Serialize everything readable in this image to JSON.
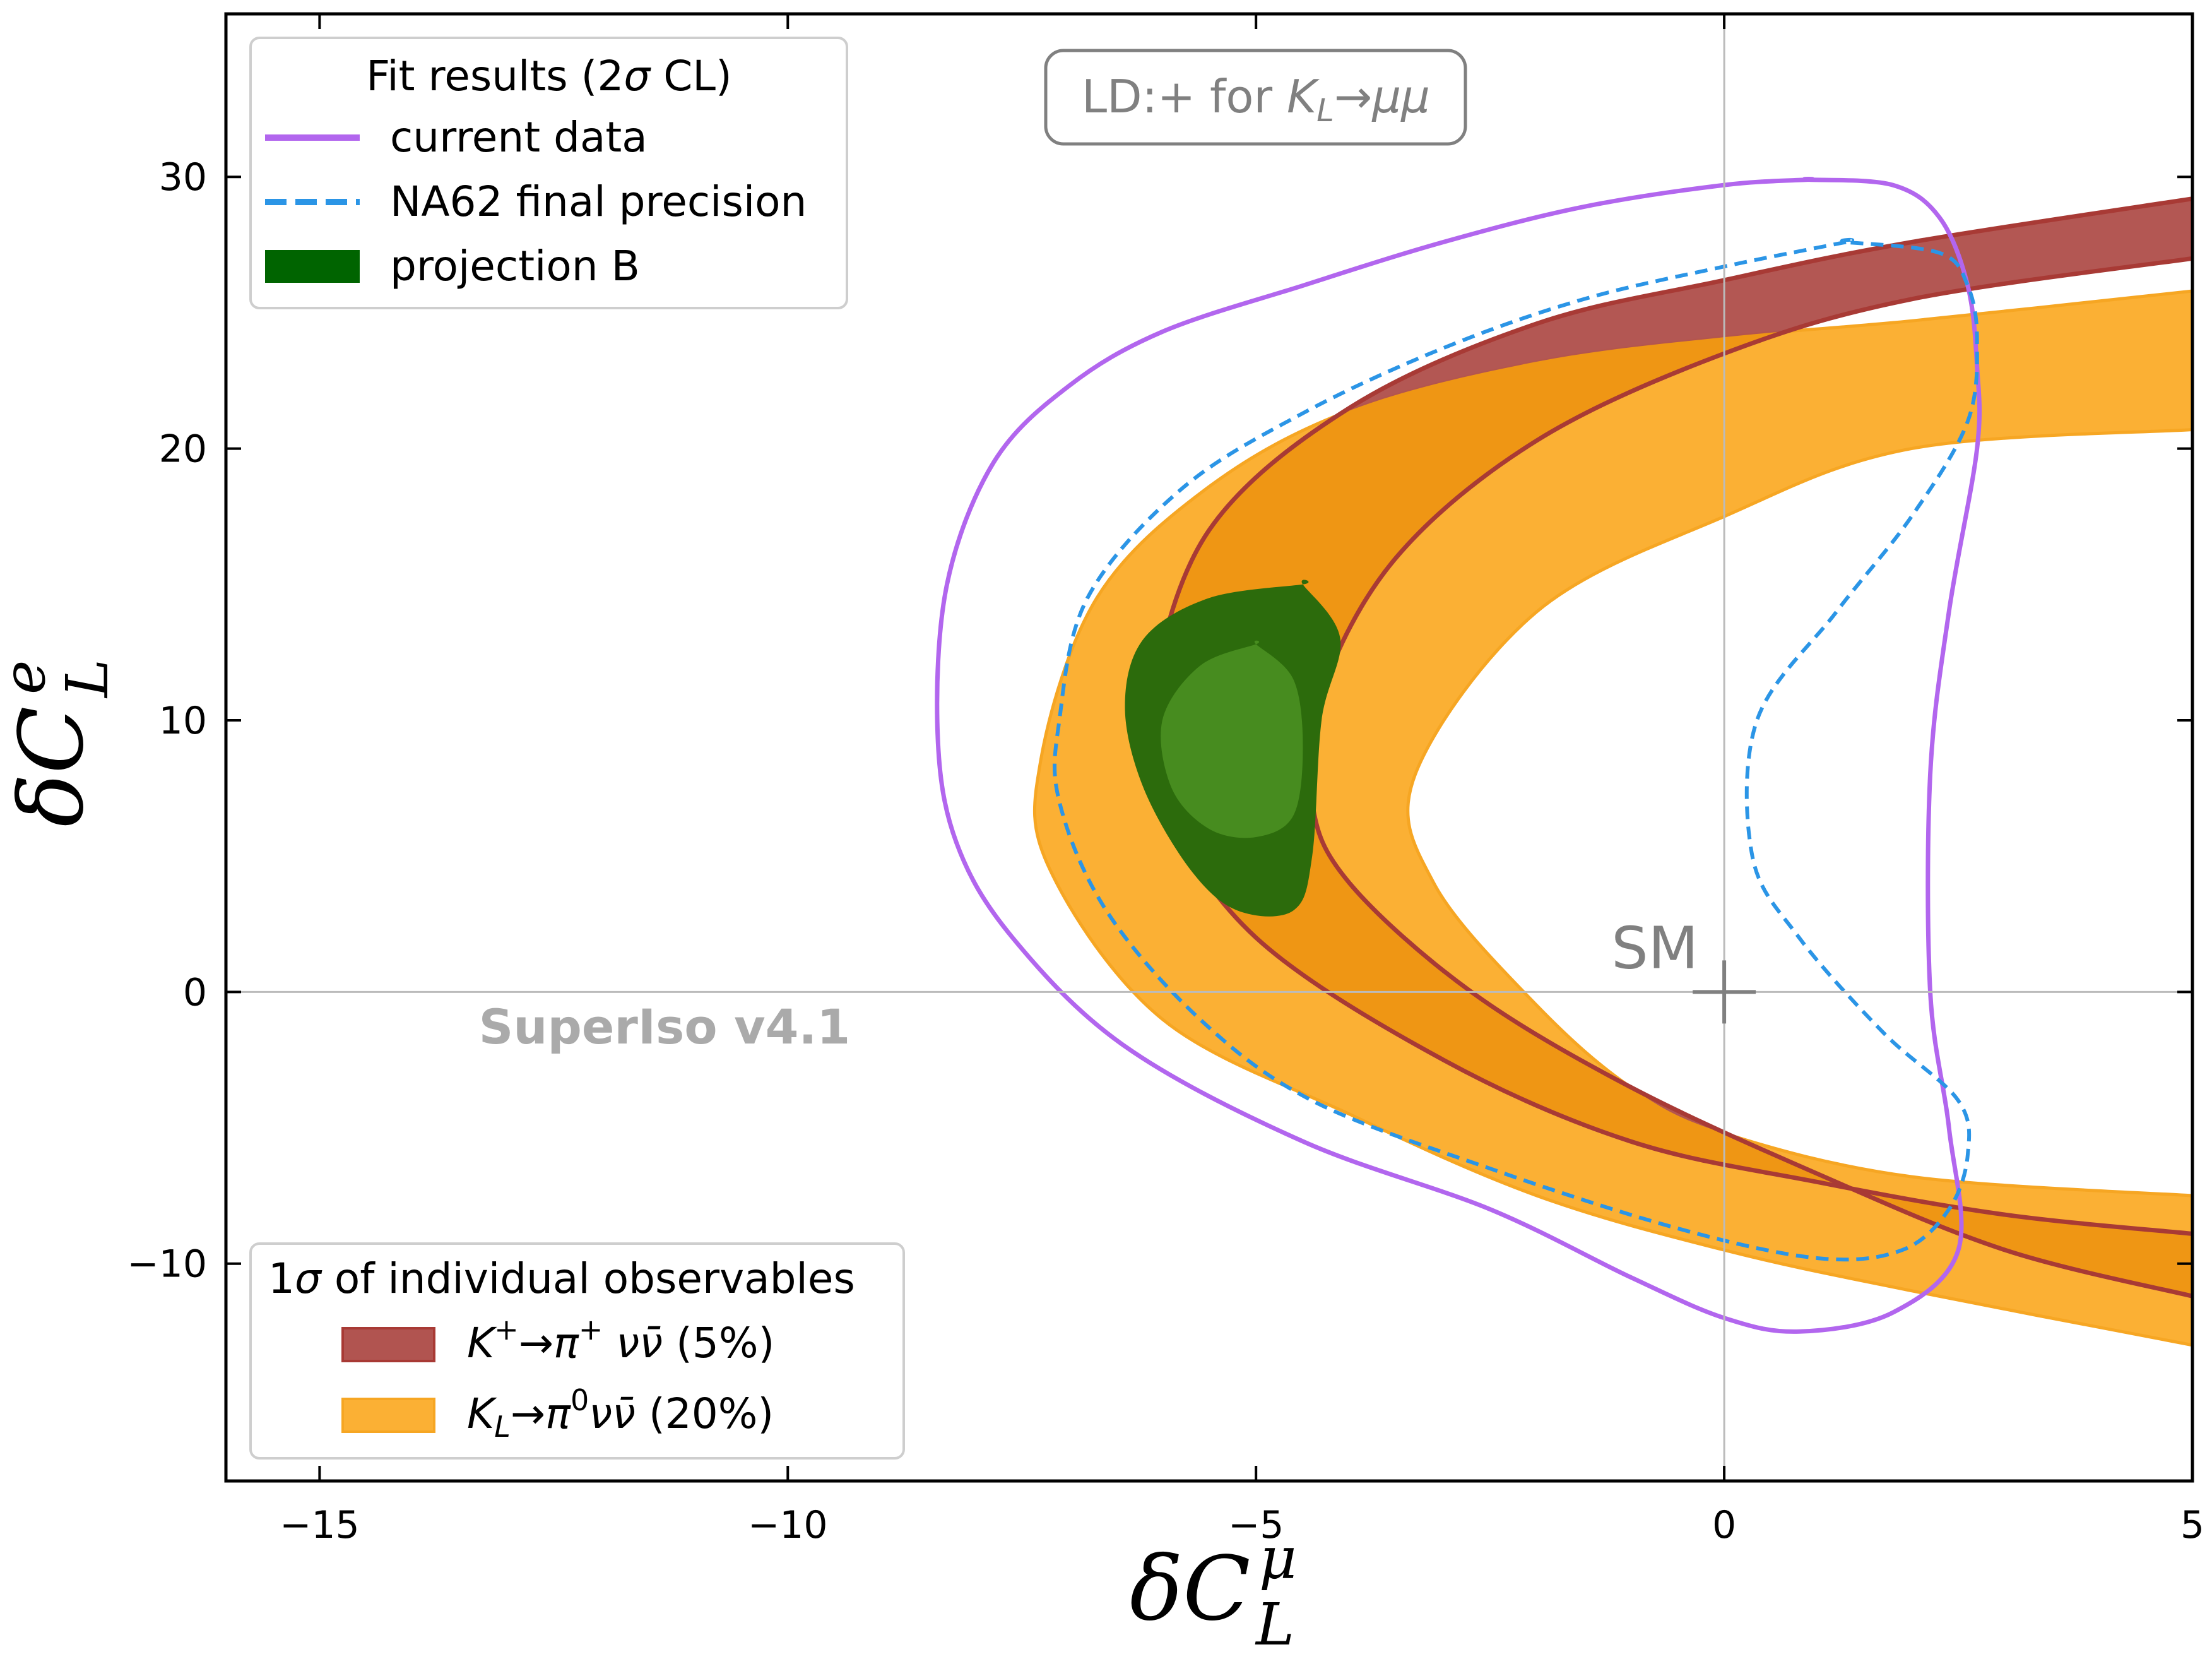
{
  "chart_data": {
    "type": "contour",
    "xlabel": "δC_L^μ",
    "ylabel": "δC_L^e",
    "xlim": [
      -16,
      5
    ],
    "ylim": [
      -18,
      36
    ],
    "xticks": [
      -15,
      -10,
      -5,
      0,
      5
    ],
    "yticks": [
      -10,
      0,
      10,
      20,
      30
    ],
    "xtick_labels": [
      "−15",
      "−10",
      "−5",
      "0",
      "5"
    ],
    "ytick_labels": [
      "−10",
      "0",
      "10",
      "20",
      "30"
    ],
    "annotation_box": "LD:+ for K_L→μμ",
    "watermark": "SuperIso v4.1",
    "sm_point": {
      "label": "SM",
      "x": 0,
      "y": 0
    },
    "legend_fit": {
      "title": "Fit results (2σ CL)",
      "entries": [
        "current data",
        "NA62 final precision",
        "projection B"
      ]
    },
    "legend_obs": {
      "title": "1σ of individual observables",
      "entries": [
        "K⁺→π⁺νν̄ (5%)",
        "K_L→π⁰νν̄  (20%)"
      ]
    },
    "colors": {
      "current": "#b266ee",
      "na62": "#2b95e6",
      "projection_outer": "#2c6b0c",
      "projection_inner": "#478c1f",
      "kplus": "#b15450",
      "kplus_edge": "#a83a35",
      "kl": "#fbb034",
      "kl_edge": "#f6a623",
      "overlap": "#ef9614",
      "sm": "#808080"
    },
    "series": [
      {
        "name": "current data",
        "style": "solid",
        "points": [
          [
            0.9,
            29.9
          ],
          [
            0.0,
            29.7
          ],
          [
            -1.5,
            28.9
          ],
          [
            -3.0,
            27.6
          ],
          [
            -4.5,
            26.0
          ],
          [
            -6.0,
            24.3
          ],
          [
            -7.0,
            22.3
          ],
          [
            -7.8,
            19.5
          ],
          [
            -8.3,
            15.0
          ],
          [
            -8.4,
            9.5
          ],
          [
            -8.2,
            5.5
          ],
          [
            -7.6,
            2.0
          ],
          [
            -6.4,
            -2.0
          ],
          [
            -4.5,
            -5.5
          ],
          [
            -2.5,
            -8.0
          ],
          [
            -1.0,
            -10.5
          ],
          [
            0.0,
            -12.0
          ],
          [
            0.8,
            -12.5
          ],
          [
            1.8,
            -11.8
          ],
          [
            2.5,
            -9.5
          ],
          [
            2.4,
            -5.0
          ],
          [
            2.2,
            0.0
          ],
          [
            2.2,
            8.0
          ],
          [
            2.4,
            14.0
          ],
          [
            2.7,
            20.0
          ],
          [
            2.7,
            23.0
          ],
          [
            2.6,
            26.0
          ],
          [
            2.3,
            28.5
          ],
          [
            1.8,
            29.7
          ],
          [
            0.9,
            29.9
          ]
        ]
      },
      {
        "name": "NA62 final precision",
        "style": "dashed",
        "points": [
          [
            1.3,
            27.6
          ],
          [
            0.0,
            26.7
          ],
          [
            -1.5,
            25.5
          ],
          [
            -3.0,
            23.7
          ],
          [
            -4.5,
            21.3
          ],
          [
            -5.8,
            18.5
          ],
          [
            -6.8,
            14.5
          ],
          [
            -7.1,
            10.0
          ],
          [
            -7.1,
            7.0
          ],
          [
            -6.6,
            3.0
          ],
          [
            -5.6,
            -1.0
          ],
          [
            -4.4,
            -4.0
          ],
          [
            -2.5,
            -6.5
          ],
          [
            -0.5,
            -8.7
          ],
          [
            1.0,
            -9.8
          ],
          [
            1.9,
            -9.5
          ],
          [
            2.4,
            -8.0
          ],
          [
            2.6,
            -6.0
          ],
          [
            2.5,
            -4.0
          ],
          [
            1.7,
            -1.5
          ],
          [
            0.8,
            2.0
          ],
          [
            0.3,
            5.0
          ],
          [
            0.35,
            10.0
          ],
          [
            1.2,
            14.0
          ],
          [
            2.0,
            17.5
          ],
          [
            2.6,
            21.0
          ],
          [
            2.7,
            24.0
          ],
          [
            2.6,
            26.0
          ],
          [
            2.3,
            27.2
          ],
          [
            1.3,
            27.6
          ]
        ]
      },
      {
        "name": "projection B (outer)",
        "style": "filled",
        "points": [
          [
            -4.5,
            15.0
          ],
          [
            -5.5,
            14.5
          ],
          [
            -6.2,
            13.0
          ],
          [
            -6.4,
            10.5
          ],
          [
            -6.2,
            7.5
          ],
          [
            -5.7,
            4.5
          ],
          [
            -5.2,
            3.0
          ],
          [
            -4.6,
            3.0
          ],
          [
            -4.4,
            5.0
          ],
          [
            -4.3,
            10.0
          ],
          [
            -4.1,
            13.0
          ],
          [
            -4.5,
            15.0
          ]
        ]
      },
      {
        "name": "projection B (inner)",
        "style": "filled",
        "points": [
          [
            -5.0,
            12.8
          ],
          [
            -5.6,
            12.0
          ],
          [
            -6.0,
            10.0
          ],
          [
            -5.9,
            7.5
          ],
          [
            -5.5,
            6.0
          ],
          [
            -5.0,
            5.7
          ],
          [
            -4.6,
            6.5
          ],
          [
            -4.5,
            9.0
          ],
          [
            -4.6,
            11.5
          ],
          [
            -5.0,
            12.8
          ]
        ]
      },
      {
        "name": "K⁺→π⁺νν̄ (5%)",
        "style": "band",
        "outer": [
          [
            5.0,
            29.2
          ],
          [
            2.0,
            27.6
          ],
          [
            0.0,
            26.2
          ],
          [
            -2.0,
            24.6
          ],
          [
            -4.0,
            21.5
          ],
          [
            -5.5,
            17.0
          ],
          [
            -6.1,
            11.0
          ],
          [
            -6.0,
            7.0
          ],
          [
            -5.0,
            2.0
          ],
          [
            -3.0,
            -2.5
          ],
          [
            -1.0,
            -5.5
          ],
          [
            1.0,
            -7.0
          ],
          [
            3.0,
            -8.2
          ],
          [
            5.0,
            -8.9
          ]
        ],
        "inner": [
          [
            5.0,
            27.0
          ],
          [
            2.0,
            25.5
          ],
          [
            0.0,
            23.5
          ],
          [
            -2.0,
            20.3
          ],
          [
            -3.5,
            16.0
          ],
          [
            -4.3,
            11.0
          ],
          [
            -4.4,
            7.0
          ],
          [
            -4.0,
            4.0
          ],
          [
            -2.7,
            0.0
          ],
          [
            -1.0,
            -3.5
          ],
          [
            1.0,
            -6.7
          ],
          [
            3.0,
            -9.5
          ],
          [
            5.0,
            -11.2
          ]
        ]
      },
      {
        "name": "K_L→π⁰νν̄  (20%)",
        "style": "band",
        "outer": [
          [
            5.0,
            25.8
          ],
          [
            2.0,
            24.7
          ],
          [
            0.0,
            24.1
          ],
          [
            -2.0,
            23.2
          ],
          [
            -4.0,
            21.4
          ],
          [
            -5.5,
            18.6
          ],
          [
            -6.7,
            14.5
          ],
          [
            -7.3,
            8.5
          ],
          [
            -7.2,
            4.5
          ],
          [
            -6.0,
            -1.0
          ],
          [
            -4.0,
            -4.5
          ],
          [
            -2.0,
            -7.5
          ],
          [
            0.0,
            -9.5
          ],
          [
            2.0,
            -11.0
          ],
          [
            5.0,
            -13.0
          ]
        ],
        "inner": [
          [
            5.0,
            20.7
          ],
          [
            2.0,
            20.0
          ],
          [
            0.0,
            17.5
          ],
          [
            -2.0,
            14.0
          ],
          [
            -3.3,
            8.0
          ],
          [
            -3.1,
            4.0
          ],
          [
            -2.0,
            -0.5
          ],
          [
            -1.0,
            -3.5
          ],
          [
            0.0,
            -5.2
          ],
          [
            2.0,
            -6.8
          ],
          [
            5.0,
            -7.5
          ]
        ]
      }
    ]
  }
}
